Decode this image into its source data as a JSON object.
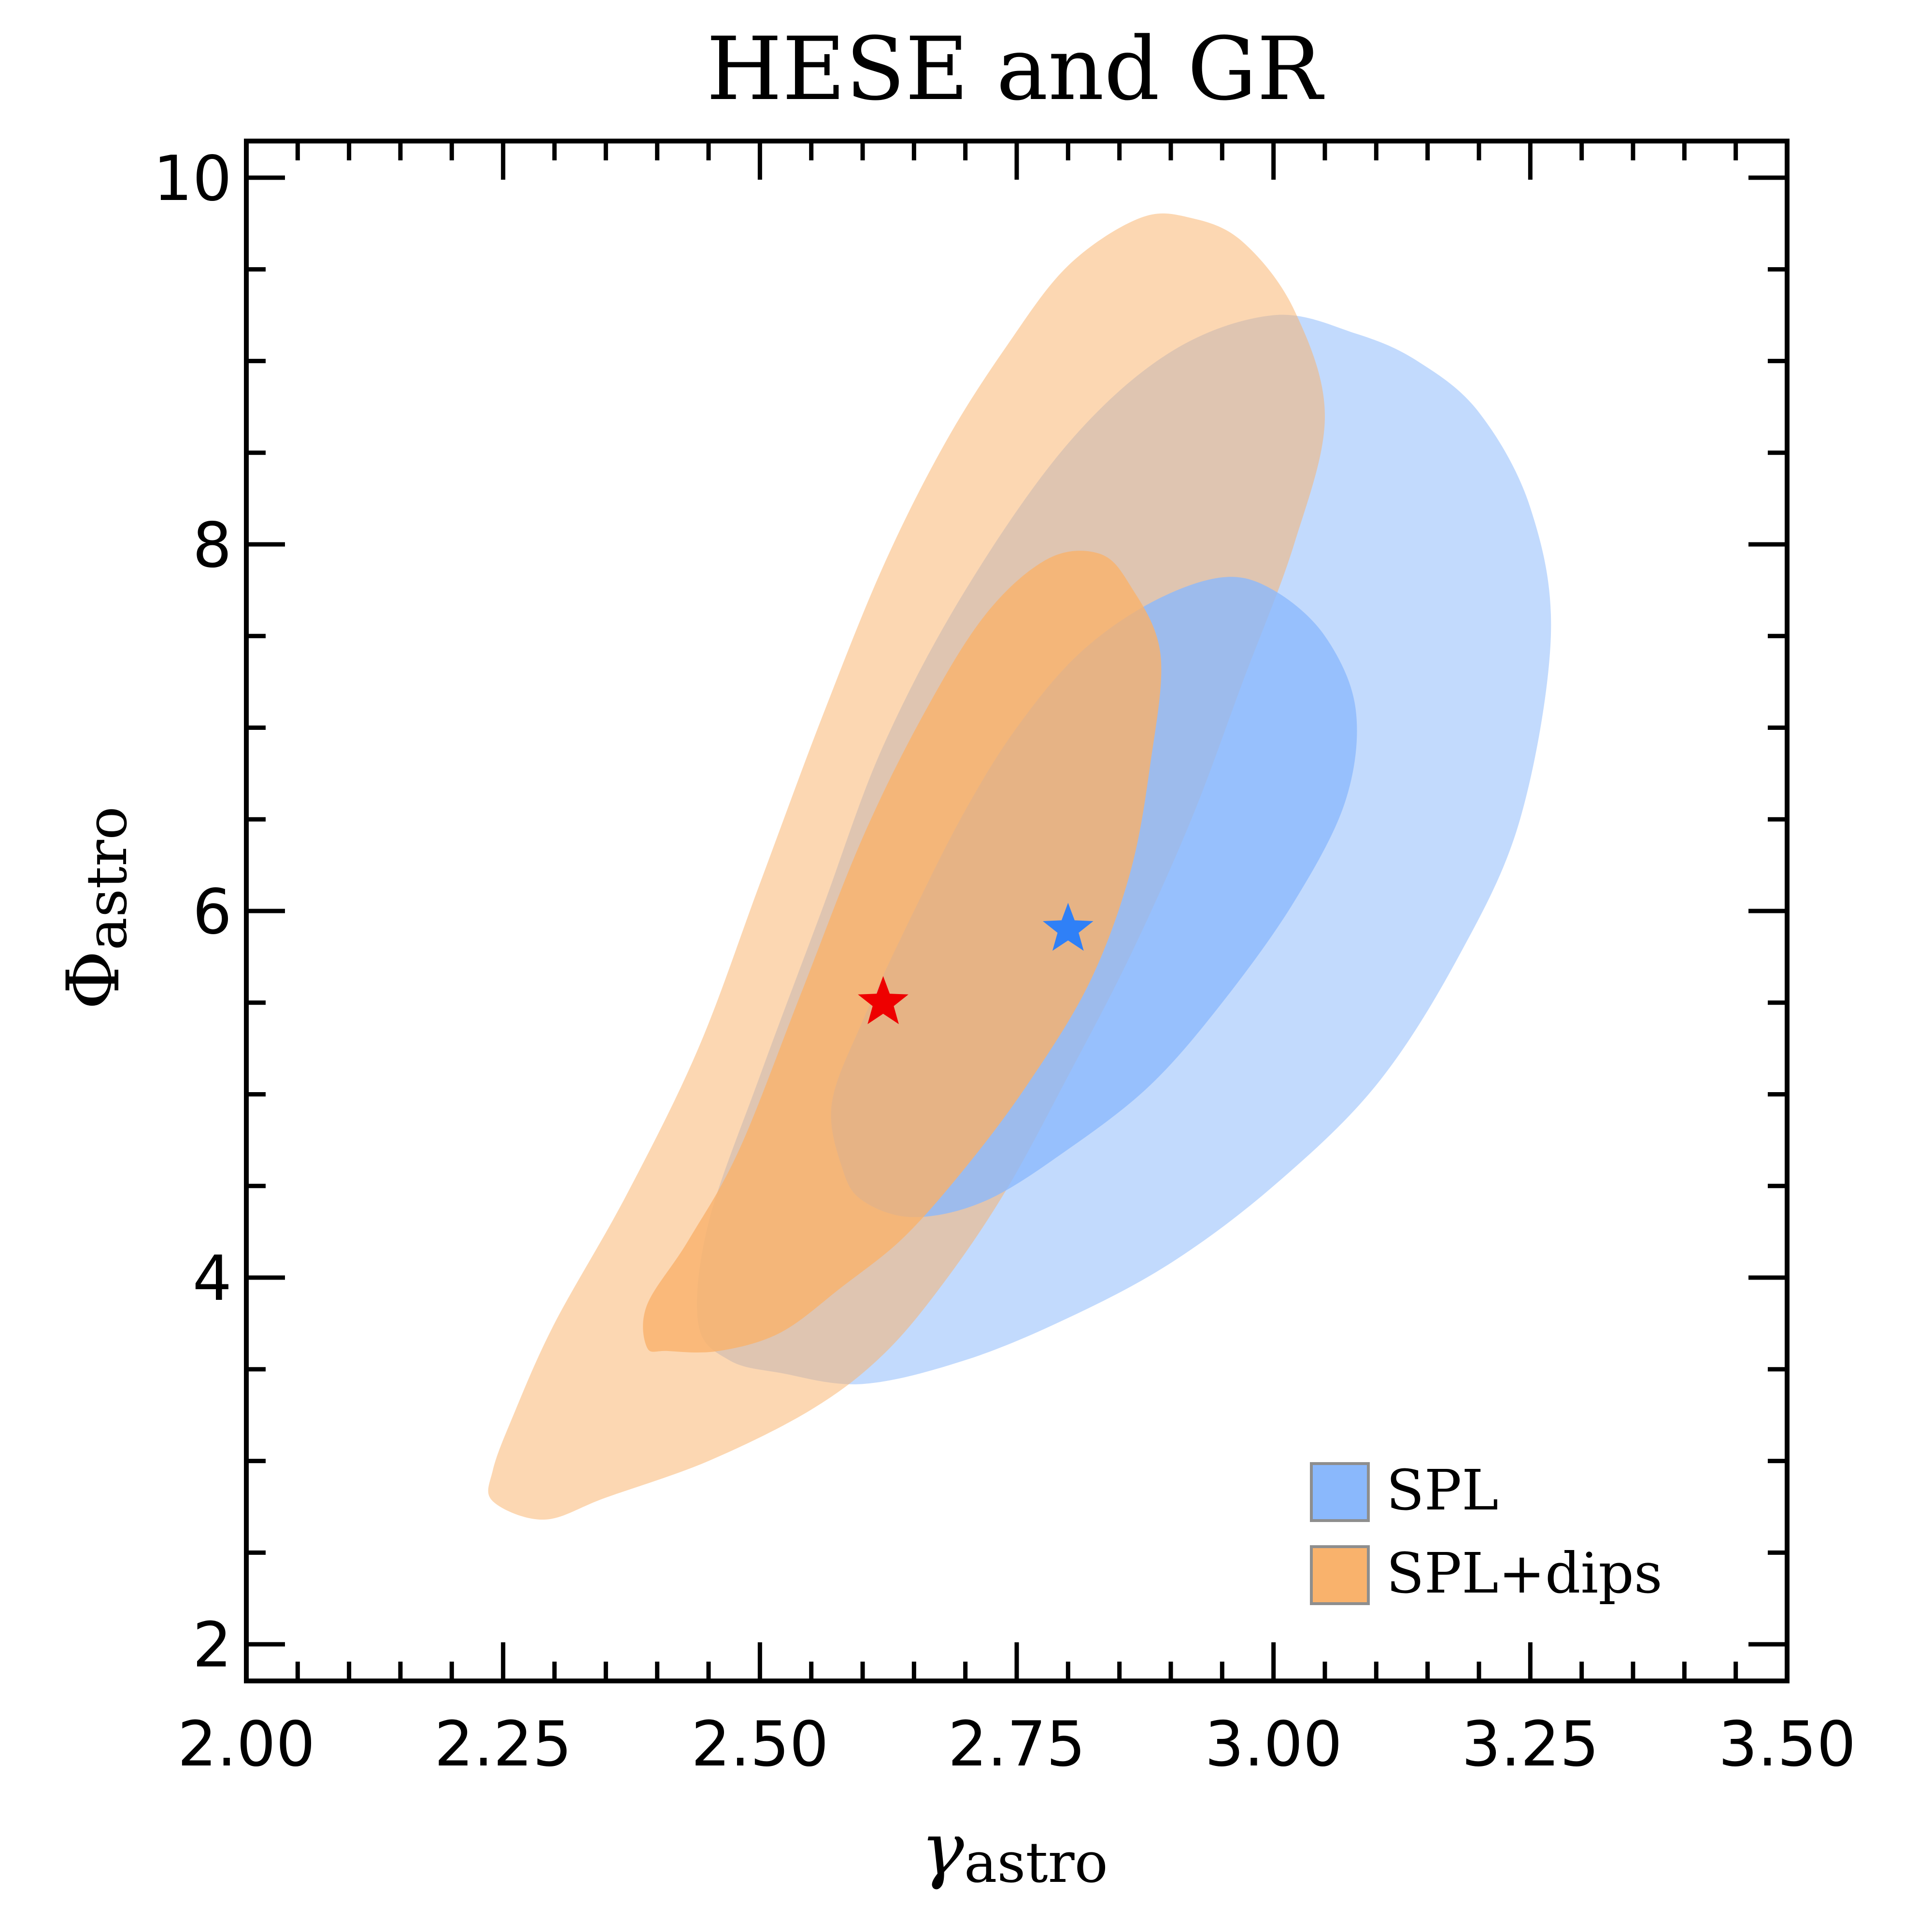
{
  "chart_data": {
    "type": "contour",
    "title": "HESE and GR",
    "xlabel": {
      "symbol": "γ",
      "subscript": "astro"
    },
    "ylabel": {
      "symbol": "Φ",
      "subscript": "astro"
    },
    "xlim": [
      2.0,
      3.5
    ],
    "ylim": [
      1.8,
      10.2
    ],
    "xticks": [
      2.0,
      2.25,
      2.5,
      2.75,
      3.0,
      3.25,
      3.5
    ],
    "xtick_labels": [
      "2.00",
      "2.25",
      "2.50",
      "2.75",
      "3.00",
      "3.25",
      "3.50"
    ],
    "yticks": [
      2,
      4,
      6,
      8,
      10
    ],
    "ytick_labels": [
      "2",
      "4",
      "6",
      "8",
      "10"
    ],
    "legend_position": "bottom-right",
    "series": [
      {
        "name": "SPL",
        "color": "#8ab8fc",
        "best_fit": {
          "x": 2.8,
          "y": 5.9,
          "color": "#2f80f7"
        },
        "contours": [
          {
            "level": "outer",
            "opacity": 0.52,
            "points": [
              [
                2.52,
                3.48
              ],
              [
                2.6,
                3.42
              ],
              [
                2.7,
                3.55
              ],
              [
                2.8,
                3.78
              ],
              [
                2.9,
                4.08
              ],
              [
                3.0,
                4.5
              ],
              [
                3.1,
                5.05
              ],
              [
                3.18,
                5.75
              ],
              [
                3.24,
                6.5
              ],
              [
                3.27,
                7.5
              ],
              [
                3.25,
                8.2
              ],
              [
                3.2,
                8.72
              ],
              [
                3.14,
                9.0
              ],
              [
                3.08,
                9.15
              ],
              [
                3.0,
                9.25
              ],
              [
                2.9,
                9.05
              ],
              [
                2.8,
                8.55
              ],
              [
                2.7,
                7.75
              ],
              [
                2.62,
                6.9
              ],
              [
                2.56,
                6.0
              ],
              [
                2.5,
                5.1
              ],
              [
                2.45,
                4.3
              ],
              [
                2.44,
                3.75
              ],
              [
                2.47,
                3.55
              ]
            ]
          },
          {
            "level": "inner",
            "opacity": 0.78,
            "points": [
              [
                2.58,
                4.6
              ],
              [
                2.6,
                4.42
              ],
              [
                2.65,
                4.33
              ],
              [
                2.72,
                4.42
              ],
              [
                2.8,
                4.7
              ],
              [
                2.88,
                5.05
              ],
              [
                2.95,
                5.5
              ],
              [
                3.02,
                6.05
              ],
              [
                3.07,
                6.6
              ],
              [
                3.08,
                7.1
              ],
              [
                3.05,
                7.5
              ],
              [
                3.0,
                7.75
              ],
              [
                2.95,
                7.82
              ],
              [
                2.88,
                7.68
              ],
              [
                2.81,
                7.4
              ],
              [
                2.75,
                7.0
              ],
              [
                2.7,
                6.55
              ],
              [
                2.65,
                6.0
              ],
              [
                2.6,
                5.4
              ],
              [
                2.57,
                4.95
              ]
            ]
          }
        ]
      },
      {
        "name": "SPL+dips",
        "color": "#f9b26c",
        "best_fit": {
          "x": 2.62,
          "y": 5.5,
          "color": "#ee0000"
        },
        "contours": [
          {
            "level": "outer",
            "opacity": 0.52,
            "points": [
              [
                2.24,
                2.78
              ],
              [
                2.29,
                2.68
              ],
              [
                2.35,
                2.8
              ],
              [
                2.45,
                3.0
              ],
              [
                2.55,
                3.28
              ],
              [
                2.62,
                3.58
              ],
              [
                2.68,
                3.98
              ],
              [
                2.74,
                4.48
              ],
              [
                2.8,
                5.1
              ],
              [
                2.86,
                5.75
              ],
              [
                2.92,
                6.5
              ],
              [
                2.97,
                7.25
              ],
              [
                3.02,
                8.0
              ],
              [
                3.05,
                8.7
              ],
              [
                3.02,
                9.28
              ],
              [
                2.97,
                9.65
              ],
              [
                2.92,
                9.78
              ],
              [
                2.87,
                9.78
              ],
              [
                2.8,
                9.52
              ],
              [
                2.74,
                9.08
              ],
              [
                2.68,
                8.55
              ],
              [
                2.62,
                7.88
              ],
              [
                2.56,
                7.05
              ],
              [
                2.5,
                6.15
              ],
              [
                2.44,
                5.25
              ],
              [
                2.37,
                4.45
              ],
              [
                2.3,
                3.75
              ],
              [
                2.26,
                3.25
              ],
              [
                2.24,
                2.95
              ]
            ]
          },
          {
            "level": "inner",
            "opacity": 0.8,
            "points": [
              [
                2.39,
                3.62
              ],
              [
                2.41,
                3.6
              ],
              [
                2.46,
                3.6
              ],
              [
                2.52,
                3.7
              ],
              [
                2.58,
                3.95
              ],
              [
                2.64,
                4.22
              ],
              [
                2.7,
                4.6
              ],
              [
                2.76,
                5.05
              ],
              [
                2.82,
                5.6
              ],
              [
                2.86,
                6.2
              ],
              [
                2.88,
                6.8
              ],
              [
                2.89,
                7.4
              ],
              [
                2.86,
                7.78
              ],
              [
                2.83,
                7.95
              ],
              [
                2.78,
                7.92
              ],
              [
                2.72,
                7.62
              ],
              [
                2.66,
                7.08
              ],
              [
                2.6,
                6.4
              ],
              [
                2.54,
                5.55
              ],
              [
                2.48,
                4.7
              ],
              [
                2.43,
                4.2
              ],
              [
                2.39,
                3.85
              ]
            ]
          }
        ]
      }
    ]
  }
}
